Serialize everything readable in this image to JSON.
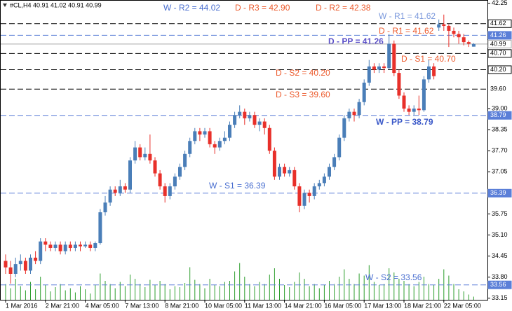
{
  "chart_data": {
    "type": "candlestick",
    "title": "#CL,H4  40.91 41.02 40.91 40.99",
    "ylim": [
      33.1,
      42.35
    ],
    "yticks": [
      42.25,
      {
        "value": 39.0,
        "label": "39.00"
      },
      38.35,
      {
        "value": 37.7,
        "label": "37.70"
      },
      37.05,
      35.75,
      {
        "value": 35.1,
        "label": "35.10"
      },
      34.45,
      {
        "value": 33.8,
        "label": "33.80"
      },
      33.15
    ],
    "xticks": [
      {
        "value": 0,
        "label": "1 Mar 2016"
      },
      {
        "value": 8,
        "label": "2 Mar 21:00"
      },
      {
        "value": 16,
        "label": "4 Mar 05:00"
      },
      {
        "value": 24,
        "label": "7 Mar 13:00"
      },
      {
        "value": 32,
        "label": "8 Mar 21:00"
      },
      {
        "value": 40,
        "label": "10 Mar 05:00"
      },
      {
        "value": 48,
        "label": "11 Mar 13:00"
      },
      {
        "value": 56,
        "label": "14 Mar 21:00"
      },
      {
        "value": 64,
        "label": "16 Mar 05:00"
      },
      {
        "value": 72,
        "label": "17 Mar 13:00"
      },
      {
        "value": 80,
        "label": "18 Mar 21:00"
      },
      {
        "value": 88,
        "label": "22 Mar 05:00"
      }
    ],
    "up_color": "#4a7eb8",
    "down_color": "#e8302a",
    "volume_color": "#2e9e2e",
    "open": [
      34.3,
      34.1,
      33.9,
      34.2,
      34.3,
      34.0,
      34.4,
      34.3,
      34.9,
      34.8,
      34.7,
      34.8,
      34.6,
      34.8,
      34.7,
      34.8,
      34.75,
      34.8,
      34.7,
      34.85,
      35.8,
      36.1,
      36.5,
      36.4,
      36.6,
      36.5,
      37.4,
      37.8,
      37.5,
      37.6,
      37.4,
      37.0,
      36.6,
      36.3,
      36.6,
      36.9,
      37.2,
      37.6,
      38.0,
      38.3,
      38.2,
      38.3,
      37.9,
      37.8,
      38.0,
      38.1,
      38.5,
      38.8,
      38.9,
      38.7,
      38.8,
      38.5,
      38.6,
      38.4,
      37.7,
      36.9,
      37.2,
      37.0,
      37.1,
      36.6,
      36.0,
      36.4,
      36.3,
      36.6,
      36.7,
      36.9,
      37.2,
      37.5,
      38.1,
      38.7,
      38.9,
      38.8,
      39.2,
      39.8,
      40.3,
      40.2,
      40.3,
      40.25,
      41.0,
      40.1,
      39.4,
      39.0,
      38.9,
      39.0,
      38.95,
      39.9,
      40.3,
      41.5,
      41.6,
      41.55,
      41.4,
      41.3,
      41.2,
      41.05,
      40.91
    ],
    "high": [
      34.5,
      34.3,
      34.4,
      34.5,
      34.4,
      34.5,
      34.6,
      35.0,
      35.0,
      34.9,
      34.9,
      34.9,
      34.9,
      34.9,
      34.9,
      34.9,
      34.9,
      34.9,
      34.9,
      35.9,
      36.3,
      36.6,
      36.6,
      36.8,
      36.7,
      37.5,
      38.0,
      37.9,
      37.8,
      38.2,
      37.5,
      37.1,
      36.7,
      36.7,
      37.0,
      37.3,
      37.7,
      38.1,
      38.4,
      38.4,
      38.4,
      38.4,
      38.0,
      38.1,
      38.3,
      38.6,
      38.9,
      39.1,
      39.0,
      38.9,
      38.9,
      38.7,
      38.7,
      38.5,
      37.8,
      37.3,
      37.3,
      37.2,
      37.2,
      36.7,
      36.5,
      36.5,
      36.7,
      36.8,
      37.0,
      37.3,
      37.6,
      38.2,
      38.8,
      39.0,
      39.0,
      39.3,
      39.9,
      40.5,
      40.4,
      40.4,
      40.4,
      41.3,
      41.1,
      40.2,
      39.5,
      39.1,
      39.1,
      39.4,
      40.0,
      40.5,
      40.4,
      41.75,
      41.9,
      41.6,
      41.5,
      41.4,
      41.3,
      41.1,
      41.02
    ],
    "low": [
      33.9,
      33.6,
      33.8,
      34.0,
      33.9,
      33.9,
      34.2,
      34.2,
      34.6,
      34.6,
      34.6,
      34.5,
      34.5,
      34.6,
      34.6,
      34.6,
      34.7,
      34.6,
      34.6,
      34.8,
      35.7,
      36.0,
      36.3,
      36.3,
      36.4,
      36.4,
      37.3,
      37.4,
      37.4,
      37.3,
      36.9,
      36.5,
      36.1,
      36.2,
      36.5,
      36.8,
      37.1,
      37.5,
      37.9,
      38.0,
      38.1,
      37.8,
      37.6,
      37.7,
      37.9,
      38.0,
      38.4,
      38.7,
      38.5,
      38.6,
      38.4,
      38.3,
      38.2,
      37.6,
      36.8,
      36.8,
      36.9,
      36.9,
      36.5,
      35.8,
      35.9,
      36.1,
      36.2,
      36.5,
      36.6,
      36.8,
      37.1,
      37.4,
      38.0,
      38.6,
      38.6,
      38.7,
      39.1,
      39.7,
      40.1,
      40.1,
      40.1,
      40.2,
      40.0,
      39.3,
      38.9,
      38.8,
      38.8,
      38.8,
      38.9,
      39.8,
      39.9,
      41.4,
      41.4,
      40.9,
      41.2,
      41.0,
      40.95,
      40.9,
      40.91
    ],
    "close": [
      34.1,
      33.9,
      34.2,
      34.3,
      34.0,
      34.4,
      34.3,
      34.9,
      34.8,
      34.7,
      34.8,
      34.6,
      34.8,
      34.7,
      34.8,
      34.75,
      34.8,
      34.7,
      34.85,
      35.8,
      36.1,
      36.5,
      36.4,
      36.6,
      36.5,
      37.4,
      37.8,
      37.5,
      37.6,
      37.4,
      37.0,
      36.6,
      36.3,
      36.6,
      36.9,
      37.2,
      37.6,
      38.0,
      38.3,
      38.2,
      38.3,
      37.9,
      37.8,
      38.0,
      38.1,
      38.5,
      38.8,
      38.9,
      38.7,
      38.8,
      38.5,
      38.6,
      38.4,
      37.7,
      36.9,
      37.2,
      37.0,
      37.1,
      36.6,
      36.0,
      36.4,
      36.3,
      36.6,
      36.7,
      36.9,
      37.2,
      37.5,
      38.1,
      38.7,
      38.9,
      38.8,
      39.2,
      39.8,
      40.3,
      40.2,
      40.3,
      40.25,
      41.0,
      40.1,
      39.4,
      39.0,
      38.9,
      39.0,
      38.95,
      39.9,
      40.3,
      40.0,
      41.6,
      41.55,
      41.4,
      41.3,
      41.2,
      41.05,
      41.0,
      40.99
    ],
    "volume": [
      30,
      22,
      40,
      26,
      18,
      34,
      20,
      44,
      28,
      16,
      24,
      30,
      18,
      22,
      14,
      26,
      20,
      12,
      28,
      50,
      36,
      30,
      22,
      34,
      26,
      48,
      40,
      30,
      24,
      38,
      28,
      36,
      30,
      20,
      26,
      24,
      32,
      62,
      38,
      30,
      22,
      40,
      28,
      26,
      34,
      36,
      54,
      70,
      44,
      30,
      26,
      34,
      30,
      48,
      60,
      40,
      28,
      24,
      34,
      52,
      40,
      26,
      30,
      22,
      28,
      36,
      30,
      44,
      58,
      40,
      30,
      50,
      46,
      66,
      34,
      28,
      30,
      60,
      52,
      40,
      36,
      30,
      26,
      34,
      44,
      30,
      28,
      40,
      58,
      46,
      30,
      20,
      16,
      10,
      6
    ],
    "current_price": {
      "value": 40.99,
      "color": "#a8a8a8"
    },
    "levels": [
      {
        "text": "W - R2 = 44.02",
        "color": "#4a6fd0"
      },
      {
        "text": "D - R3 = 42.90",
        "color": "#ec5a2c"
      },
      {
        "text": "D - R2 = 42.38",
        "color": "#ec5a2c"
      },
      {
        "text": "W - R1 = 41.62",
        "color": "#7a98dc",
        "value": 41.62,
        "line_color": "#000000",
        "box_color": "#ffffff"
      },
      {
        "text": "D - R1 = 41.62",
        "color": "#ec5a2c"
      },
      {
        "text": "D - PP = 41.26",
        "color": "#5a4fc8",
        "bold": true,
        "value": 41.26,
        "line_color": "#5b7fd8",
        "box_color": "#5b7fd8"
      },
      {
        "text": "D - S1 = 40.70",
        "color": "#ec5a2c",
        "value": 40.7,
        "price_label": "40.70",
        "line_color": "#000000",
        "box_color": "#ffffff"
      },
      {
        "text": "D - S2 = 40.20",
        "color": "#ec5a2c",
        "value": 40.2,
        "price_label": "40.20",
        "line_color": "#000000",
        "box_color": "#ffffff"
      },
      {
        "text": "D - S3 = 39.60",
        "color": "#ec5a2c",
        "value": 39.6,
        "price_label": "39.60",
        "line_color": "#000000"
      },
      {
        "text": "W - PP = 38.79",
        "color": "#3a58c8",
        "bold": true,
        "value": 38.79,
        "line_color": "#5b7fd8",
        "box_color": "#5b7fd8"
      },
      {
        "text": "W - S1 = 36.39",
        "color": "#4a6fd0",
        "value": 36.39,
        "line_color": "#5b7fd8",
        "box_color": "#5b7fd8"
      },
      {
        "text": "W - S2 = 33.56",
        "color": "#4a6fd0",
        "value": 33.56,
        "line_color": "#5b7fd8",
        "box_color": "#5b7fd8"
      }
    ]
  }
}
